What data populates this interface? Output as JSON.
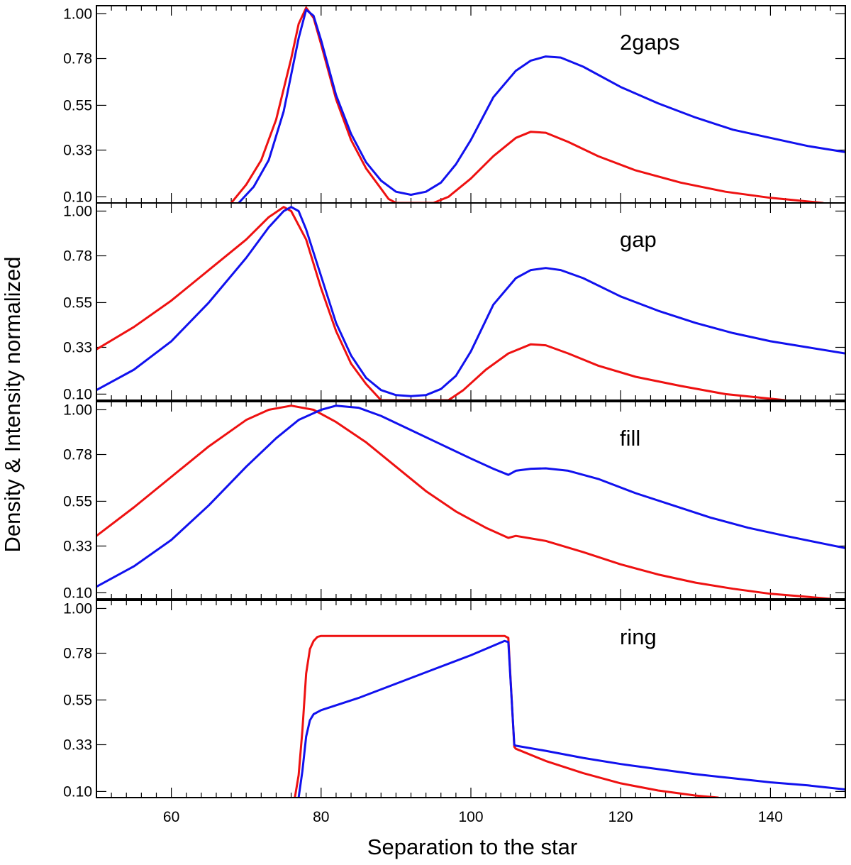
{
  "chart_data": {
    "type": "line",
    "layout": "4 stacked panels sharing x axis",
    "xlabel": "Separation to the star",
    "ylabel": "Density & Intensity normalized",
    "xlim": [
      50,
      150
    ],
    "ylim": [
      0.07,
      1.04
    ],
    "x_ticks": [
      60,
      80,
      100,
      120,
      140
    ],
    "y_ticks": [
      "0.10",
      "0.33",
      "0.55",
      "0.78",
      "1.00"
    ],
    "series_colors": {
      "red": "#ee1111",
      "blue": "#1111ee"
    },
    "panels": [
      {
        "label": "2gaps",
        "series": [
          {
            "name": "red",
            "color": "#ee1111",
            "points": [
              [
                68,
                0.07
              ],
              [
                70,
                0.16
              ],
              [
                72,
                0.28
              ],
              [
                74,
                0.48
              ],
              [
                76,
                0.78
              ],
              [
                77,
                0.95
              ],
              [
                78,
                1.03
              ],
              [
                79,
                0.98
              ],
              [
                80,
                0.85
              ],
              [
                82,
                0.58
              ],
              [
                84,
                0.38
              ],
              [
                86,
                0.24
              ],
              [
                88,
                0.14
              ],
              [
                89,
                0.09
              ],
              [
                90,
                0.07
              ],
              [
                95,
                0.07
              ],
              [
                97,
                0.1
              ],
              [
                100,
                0.19
              ],
              [
                103,
                0.3
              ],
              [
                106,
                0.39
              ],
              [
                108,
                0.42
              ],
              [
                110,
                0.415
              ],
              [
                113,
                0.37
              ],
              [
                117,
                0.3
              ],
              [
                122,
                0.23
              ],
              [
                128,
                0.17
              ],
              [
                134,
                0.125
              ],
              [
                140,
                0.095
              ],
              [
                147,
                0.07
              ]
            ]
          },
          {
            "name": "blue",
            "color": "#1111ee",
            "points": [
              [
                69,
                0.07
              ],
              [
                71,
                0.15
              ],
              [
                73,
                0.28
              ],
              [
                75,
                0.52
              ],
              [
                77,
                0.88
              ],
              [
                78,
                1.02
              ],
              [
                79,
                0.99
              ],
              [
                80,
                0.87
              ],
              [
                82,
                0.6
              ],
              [
                84,
                0.41
              ],
              [
                86,
                0.27
              ],
              [
                88,
                0.18
              ],
              [
                90,
                0.125
              ],
              [
                92,
                0.11
              ],
              [
                94,
                0.125
              ],
              [
                96,
                0.17
              ],
              [
                98,
                0.26
              ],
              [
                100,
                0.38
              ],
              [
                103,
                0.59
              ],
              [
                106,
                0.72
              ],
              [
                108,
                0.77
              ],
              [
                110,
                0.79
              ],
              [
                112,
                0.785
              ],
              [
                115,
                0.74
              ],
              [
                120,
                0.64
              ],
              [
                125,
                0.56
              ],
              [
                130,
                0.49
              ],
              [
                135,
                0.43
              ],
              [
                140,
                0.39
              ],
              [
                145,
                0.35
              ],
              [
                150,
                0.32
              ]
            ]
          }
        ]
      },
      {
        "label": "gap",
        "series": [
          {
            "name": "red",
            "color": "#ee1111",
            "points": [
              [
                50,
                0.32
              ],
              [
                55,
                0.43
              ],
              [
                60,
                0.56
              ],
              [
                65,
                0.71
              ],
              [
                70,
                0.86
              ],
              [
                73,
                0.97
              ],
              [
                75,
                1.02
              ],
              [
                76,
                1.0
              ],
              [
                78,
                0.86
              ],
              [
                80,
                0.62
              ],
              [
                82,
                0.41
              ],
              [
                84,
                0.25
              ],
              [
                86,
                0.15
              ],
              [
                88,
                0.07
              ],
              [
                97,
                0.07
              ],
              [
                99,
                0.12
              ],
              [
                102,
                0.22
              ],
              [
                105,
                0.3
              ],
              [
                108,
                0.345
              ],
              [
                110,
                0.34
              ],
              [
                113,
                0.3
              ],
              [
                117,
                0.24
              ],
              [
                122,
                0.185
              ],
              [
                128,
                0.14
              ],
              [
                134,
                0.1
              ],
              [
                142,
                0.07
              ]
            ]
          },
          {
            "name": "blue",
            "color": "#1111ee",
            "points": [
              [
                50,
                0.12
              ],
              [
                55,
                0.22
              ],
              [
                60,
                0.36
              ],
              [
                65,
                0.55
              ],
              [
                70,
                0.77
              ],
              [
                73,
                0.92
              ],
              [
                75,
                1.0
              ],
              [
                76,
                1.02
              ],
              [
                77,
                1.0
              ],
              [
                78,
                0.91
              ],
              [
                80,
                0.68
              ],
              [
                82,
                0.45
              ],
              [
                84,
                0.29
              ],
              [
                86,
                0.18
              ],
              [
                88,
                0.12
              ],
              [
                90,
                0.095
              ],
              [
                92,
                0.09
              ],
              [
                94,
                0.095
              ],
              [
                96,
                0.125
              ],
              [
                98,
                0.19
              ],
              [
                100,
                0.31
              ],
              [
                103,
                0.54
              ],
              [
                106,
                0.67
              ],
              [
                108,
                0.71
              ],
              [
                110,
                0.72
              ],
              [
                112,
                0.71
              ],
              [
                115,
                0.67
              ],
              [
                120,
                0.58
              ],
              [
                125,
                0.51
              ],
              [
                130,
                0.45
              ],
              [
                135,
                0.4
              ],
              [
                140,
                0.36
              ],
              [
                145,
                0.33
              ],
              [
                150,
                0.3
              ]
            ]
          }
        ]
      },
      {
        "label": "fill",
        "series": [
          {
            "name": "red",
            "color": "#ee1111",
            "points": [
              [
                50,
                0.38
              ],
              [
                55,
                0.52
              ],
              [
                60,
                0.67
              ],
              [
                65,
                0.82
              ],
              [
                70,
                0.95
              ],
              [
                73,
                1.0
              ],
              [
                76,
                1.02
              ],
              [
                79,
                1.0
              ],
              [
                82,
                0.94
              ],
              [
                86,
                0.84
              ],
              [
                90,
                0.72
              ],
              [
                94,
                0.6
              ],
              [
                98,
                0.5
              ],
              [
                102,
                0.42
              ],
              [
                105,
                0.37
              ],
              [
                106,
                0.38
              ],
              [
                110,
                0.355
              ],
              [
                115,
                0.3
              ],
              [
                120,
                0.24
              ],
              [
                125,
                0.19
              ],
              [
                130,
                0.15
              ],
              [
                135,
                0.12
              ],
              [
                140,
                0.095
              ],
              [
                145,
                0.08
              ],
              [
                148,
                0.07
              ]
            ]
          },
          {
            "name": "blue",
            "color": "#1111ee",
            "points": [
              [
                50,
                0.13
              ],
              [
                55,
                0.23
              ],
              [
                60,
                0.36
              ],
              [
                65,
                0.53
              ],
              [
                70,
                0.72
              ],
              [
                74,
                0.86
              ],
              [
                77,
                0.95
              ],
              [
                80,
                1.0
              ],
              [
                82,
                1.02
              ],
              [
                85,
                1.01
              ],
              [
                88,
                0.97
              ],
              [
                92,
                0.9
              ],
              [
                96,
                0.83
              ],
              [
                100,
                0.76
              ],
              [
                103,
                0.71
              ],
              [
                105,
                0.68
              ],
              [
                106,
                0.7
              ],
              [
                108,
                0.71
              ],
              [
                110,
                0.712
              ],
              [
                113,
                0.7
              ],
              [
                117,
                0.66
              ],
              [
                122,
                0.59
              ],
              [
                127,
                0.53
              ],
              [
                132,
                0.47
              ],
              [
                137,
                0.42
              ],
              [
                142,
                0.38
              ],
              [
                146,
                0.35
              ],
              [
                150,
                0.32
              ]
            ]
          }
        ]
      },
      {
        "label": "ring",
        "series": [
          {
            "name": "red",
            "color": "#ee1111",
            "points": [
              [
                76.5,
                0.07
              ],
              [
                77,
                0.18
              ],
              [
                77.5,
                0.4
              ],
              [
                78,
                0.68
              ],
              [
                78.5,
                0.8
              ],
              [
                79,
                0.84
              ],
              [
                79.5,
                0.86
              ],
              [
                80,
                0.865
              ],
              [
                104.5,
                0.865
              ],
              [
                105,
                0.855
              ],
              [
                105.8,
                0.32
              ],
              [
                106,
                0.31
              ],
              [
                110,
                0.25
              ],
              [
                115,
                0.19
              ],
              [
                120,
                0.14
              ],
              [
                125,
                0.105
              ],
              [
                130,
                0.08
              ],
              [
                133,
                0.07
              ]
            ]
          },
          {
            "name": "blue",
            "color": "#1111ee",
            "points": [
              [
                77,
                0.07
              ],
              [
                77.5,
                0.2
              ],
              [
                78,
                0.37
              ],
              [
                78.5,
                0.45
              ],
              [
                79,
                0.48
              ],
              [
                80,
                0.5
              ],
              [
                85,
                0.56
              ],
              [
                90,
                0.63
              ],
              [
                95,
                0.7
              ],
              [
                100,
                0.77
              ],
              [
                104.5,
                0.84
              ],
              [
                105,
                0.835
              ],
              [
                105.8,
                0.33
              ],
              [
                106,
                0.325
              ],
              [
                110,
                0.3
              ],
              [
                115,
                0.265
              ],
              [
                120,
                0.235
              ],
              [
                125,
                0.21
              ],
              [
                130,
                0.185
              ],
              [
                135,
                0.165
              ],
              [
                140,
                0.145
              ],
              [
                145,
                0.13
              ],
              [
                150,
                0.11
              ]
            ]
          }
        ]
      }
    ]
  }
}
